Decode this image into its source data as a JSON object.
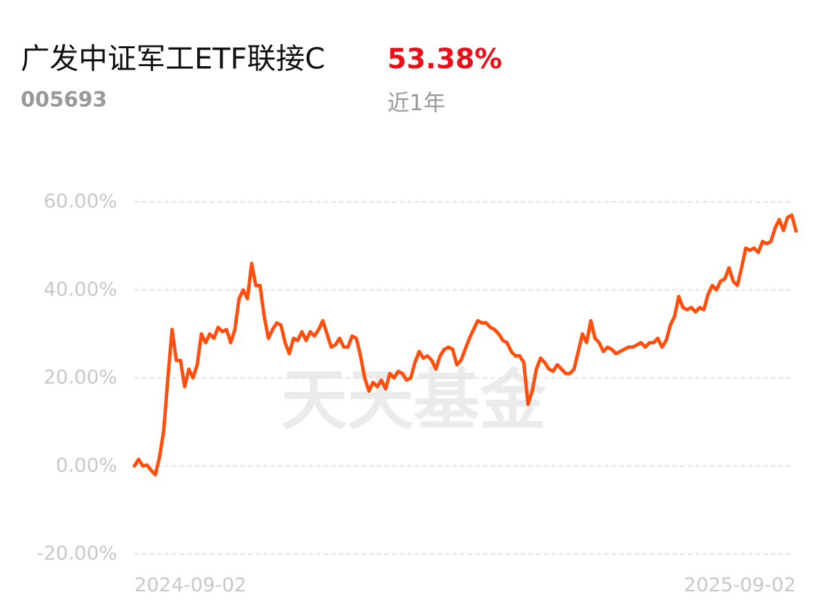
{
  "chart_data": {
    "type": "line",
    "title": "广发中证军工ETF联接C",
    "code": "005693",
    "return": "53.38%",
    "period": "近1年",
    "watermark": "天天基金",
    "categories": [
      "2024-09-02",
      null,
      null,
      null,
      null,
      null,
      null,
      null,
      null,
      null,
      null,
      null,
      null,
      null,
      null,
      null,
      null,
      null,
      null,
      null,
      null,
      null,
      null,
      null,
      null,
      null,
      null,
      null,
      null,
      null,
      null,
      null,
      null,
      null,
      null,
      null,
      null,
      null,
      null,
      null,
      null,
      null,
      null,
      null,
      null,
      null,
      null,
      null,
      null,
      null,
      null,
      null,
      null,
      null,
      null,
      null,
      null,
      null,
      null,
      null,
      null,
      null,
      null,
      null,
      null,
      null,
      null,
      null,
      null,
      null,
      null,
      null,
      null,
      null,
      null,
      null,
      null,
      null,
      null,
      null,
      null,
      null,
      null,
      null,
      null,
      null,
      null,
      null,
      null,
      null,
      null,
      null,
      null,
      null,
      null,
      null,
      null,
      null,
      null,
      null,
      null,
      null,
      null,
      null,
      null,
      null,
      null,
      null,
      null,
      null,
      null,
      null,
      null,
      null,
      null,
      null,
      null,
      null,
      null,
      null,
      null,
      null,
      null,
      null,
      null,
      null,
      null,
      null,
      null,
      null,
      null,
      null,
      null,
      null,
      null,
      null,
      null,
      null,
      null,
      null,
      null,
      null,
      null,
      null,
      null,
      null,
      null,
      null,
      null,
      null,
      null,
      null,
      null,
      null,
      null,
      null,
      null,
      null,
      "2025-09-02"
    ],
    "series": [
      {
        "color": "#ff4f0f",
        "values": [
          0,
          1.5,
          0,
          0.2,
          -1,
          -2,
          2,
          8,
          20,
          31,
          24,
          24,
          18,
          22,
          20,
          23,
          30,
          28,
          30,
          29,
          31.5,
          30.5,
          31,
          28,
          31,
          38,
          40,
          38,
          46,
          41,
          41,
          34,
          29,
          31,
          32.5,
          32,
          28,
          25.5,
          29,
          28.5,
          30.5,
          28.5,
          30.5,
          29.5,
          31,
          33,
          30,
          27,
          27.5,
          29,
          27,
          27,
          29.5,
          29,
          25,
          20,
          17,
          19,
          18,
          19.5,
          17.5,
          21,
          20,
          21.5,
          21,
          19.5,
          20,
          23.5,
          26,
          24.5,
          25,
          24,
          22,
          25,
          26.5,
          27,
          26.5,
          23,
          24,
          26.5,
          29,
          31,
          33,
          32.5,
          32.5,
          31.5,
          31,
          30,
          28.5,
          28,
          26,
          25,
          25,
          23.5,
          14,
          17,
          22,
          24.5,
          23.5,
          22,
          21.5,
          23,
          22,
          21,
          21,
          22,
          26,
          30,
          28,
          33,
          29,
          28,
          26,
          27,
          26.5,
          25.5,
          26,
          26.5,
          27,
          27,
          27.5,
          28,
          27,
          28,
          28,
          29,
          27,
          28.5,
          32,
          34,
          38.5,
          36,
          35.5,
          36,
          35,
          36,
          35.5,
          39,
          41,
          40,
          42,
          42.5,
          45,
          42,
          41,
          45,
          49.5,
          49,
          49.5,
          48.5,
          51,
          50.5,
          51,
          54,
          56,
          53.5,
          56.5,
          57,
          53.38
        ]
      }
    ],
    "ylim": [
      -20,
      60
    ],
    "yticks": [
      {
        "value": 60,
        "label": "60.00%"
      },
      {
        "value": 40,
        "label": "40.00%"
      },
      {
        "value": 20,
        "label": "20.00%"
      },
      {
        "value": 0,
        "label": "0.00%"
      },
      {
        "value": -20,
        "label": "-20.00%"
      }
    ],
    "grid": true
  }
}
